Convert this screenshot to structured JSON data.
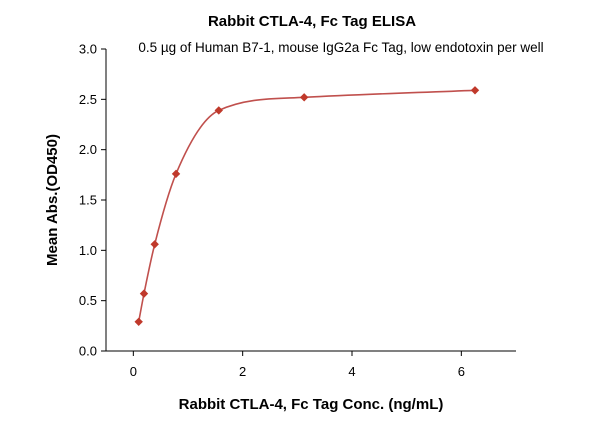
{
  "chart_data": {
    "type": "scatter",
    "title": "Rabbit CTLA-4, Fc Tag ELISA",
    "subtitle": "0.5 µg of Human B7-1, mouse IgG2a Fc Tag, low endotoxin per well",
    "xlabel": "Rabbit CTLA-4, Fc Tag Conc. (ng/mL)",
    "ylabel": "Mean Abs.(OD450)",
    "xlim": [
      -0.5,
      7.0
    ],
    "ylim": [
      0.0,
      3.0
    ],
    "xticks": [
      0,
      2,
      4,
      6
    ],
    "yticks": [
      0.0,
      0.5,
      1.0,
      1.5,
      2.0,
      2.5,
      3.0
    ],
    "xtick_labels": [
      "0",
      "2",
      "4",
      "6"
    ],
    "ytick_labels": [
      "0.0",
      "0.5",
      "1.0",
      "1.5",
      "2.0",
      "2.5",
      "3.0"
    ],
    "grid": false,
    "series": [
      {
        "x": [
          0.098,
          0.195,
          0.391,
          0.781,
          1.563,
          3.125,
          6.25
        ],
        "y": [
          0.29,
          0.57,
          1.06,
          1.76,
          2.39,
          2.52,
          2.59
        ],
        "marker": "diamond",
        "color": "#c0392b",
        "fit_curve": true,
        "curve_color": "#c0504d"
      }
    ]
  }
}
